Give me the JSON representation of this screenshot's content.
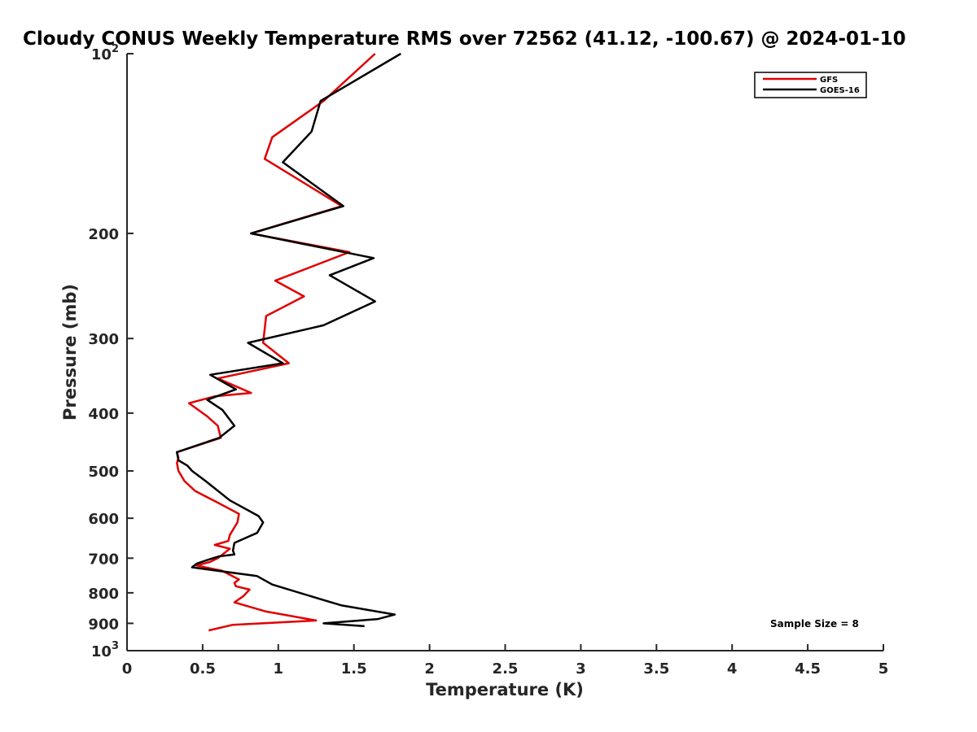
{
  "chart_data": {
    "type": "line",
    "title": "Cloudy CONUS Weekly Temperature RMS over 72562 (41.12, -100.67) @ 2024-01-10",
    "xlabel": "Temperature (K)",
    "ylabel": "Pressure (mb)",
    "xlim": [
      0,
      5
    ],
    "ylim": [
      100,
      1000
    ],
    "y_scale": "log",
    "y_reversed": true,
    "grid": false,
    "legend_position": "top-right",
    "x_ticks": [
      {
        "value": 0,
        "label": "0"
      },
      {
        "value": 0.5,
        "label": "0.5"
      },
      {
        "value": 1,
        "label": "1"
      },
      {
        "value": 1.5,
        "label": "1.5"
      },
      {
        "value": 2,
        "label": "2"
      },
      {
        "value": 2.5,
        "label": "2.5"
      },
      {
        "value": 3,
        "label": "3"
      },
      {
        "value": 3.5,
        "label": "3.5"
      },
      {
        "value": 4,
        "label": "4"
      },
      {
        "value": 4.5,
        "label": "4.5"
      },
      {
        "value": 5,
        "label": "5"
      }
    ],
    "y_ticks": [
      {
        "value": 100,
        "base": "10",
        "exp": "2"
      },
      {
        "value": 200,
        "label": "200"
      },
      {
        "value": 300,
        "label": "300"
      },
      {
        "value": 400,
        "label": "400"
      },
      {
        "value": 500,
        "label": "500"
      },
      {
        "value": 600,
        "label": "600"
      },
      {
        "value": 700,
        "label": "700"
      },
      {
        "value": 800,
        "label": "800"
      },
      {
        "value": 900,
        "label": "900"
      },
      {
        "value": 1000,
        "base": "10",
        "exp": "3"
      }
    ],
    "series": [
      {
        "name": "GFS",
        "color": "#e00000",
        "x": [
          1.64,
          1.3,
          0.96,
          0.91,
          1.42,
          0.82,
          1.47,
          0.98,
          1.17,
          0.92,
          0.9,
          1.07,
          0.6,
          0.82,
          0.58,
          0.41,
          0.53,
          0.6,
          0.62,
          0.33,
          0.34,
          0.33,
          0.34,
          0.38,
          0.45,
          0.6,
          0.74,
          0.73,
          0.68,
          0.67,
          0.58,
          0.68,
          0.6,
          0.55,
          0.46,
          0.63,
          0.74,
          0.71,
          0.72,
          0.81,
          0.77,
          0.71,
          0.92,
          1.25,
          0.7,
          0.54
        ],
        "y": [
          100,
          120,
          138,
          150,
          180,
          200,
          215,
          240,
          255,
          275,
          305,
          330,
          350,
          370,
          375,
          385,
          405,
          420,
          440,
          465,
          475,
          485,
          500,
          520,
          540,
          565,
          590,
          610,
          640,
          655,
          665,
          675,
          700,
          710,
          720,
          735,
          760,
          770,
          780,
          790,
          810,
          830,
          860,
          890,
          905,
          925
        ]
      },
      {
        "name": "GOES-16",
        "color": "#000000",
        "x": [
          1.81,
          1.28,
          1.22,
          1.03,
          1.43,
          0.82,
          1.63,
          1.34,
          1.64,
          1.3,
          0.8,
          1.03,
          0.55,
          0.72,
          0.53,
          0.63,
          0.71,
          0.61,
          0.33,
          0.34,
          0.4,
          0.43,
          0.52,
          0.68,
          0.87,
          0.9,
          0.86,
          0.71,
          0.7,
          0.71,
          0.61,
          0.53,
          0.46,
          0.43,
          0.86,
          0.96,
          1.28,
          1.42,
          1.77,
          1.66,
          1.3,
          1.57
        ],
        "y": [
          100,
          120,
          135,
          152,
          180,
          200,
          220,
          235,
          260,
          285,
          305,
          330,
          345,
          365,
          380,
          395,
          420,
          440,
          465,
          480,
          490,
          500,
          520,
          560,
          595,
          610,
          635,
          660,
          680,
          690,
          695,
          705,
          715,
          725,
          750,
          775,
          820,
          840,
          870,
          885,
          900,
          910
        ]
      }
    ],
    "annotation": "Sample Size = 8"
  }
}
